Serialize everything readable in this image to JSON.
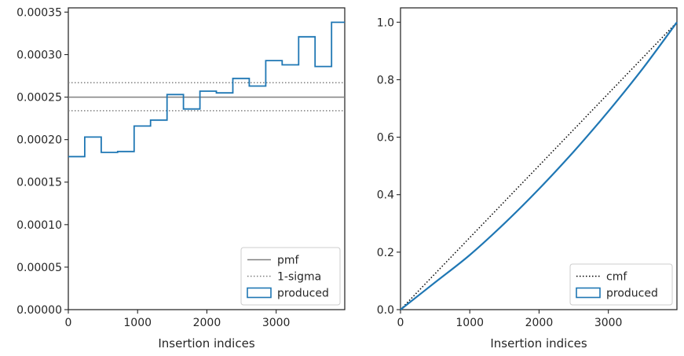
{
  "chart_data": [
    {
      "type": "histogram",
      "xlabel": "Insertion indices",
      "ylabel": "",
      "xlim": [
        0,
        3990
      ],
      "ylim": [
        0,
        0.000355
      ],
      "xticks": [
        0,
        1000,
        2000,
        3000
      ],
      "xtick_labels": [
        "0",
        "1000",
        "2000",
        "3000"
      ],
      "yticks": [
        0,
        5e-05,
        0.0001,
        0.00015,
        0.0002,
        0.00025,
        0.0003,
        0.00035
      ],
      "ytick_labels": [
        "0.00000",
        "0.00005",
        "0.00010",
        "0.00015",
        "0.00020",
        "0.00025",
        "0.00030",
        "0.00035"
      ],
      "bin_edges": [
        0,
        237,
        475,
        712,
        950,
        1187,
        1425,
        1662,
        1900,
        2137,
        2375,
        2612,
        2850,
        3087,
        3325,
        3562,
        3800,
        3990
      ],
      "bin_values": [
        0.00018,
        0.000203,
        0.000185,
        0.000186,
        0.000216,
        0.000223,
        0.000253,
        0.000236,
        0.000257,
        0.000255,
        0.000272,
        0.000263,
        0.000293,
        0.000288,
        0.000321,
        0.000286,
        0.000338
      ],
      "pmf": 0.00025,
      "sigma_lines": [
        0.000267,
        0.000234
      ],
      "legend": {
        "position": "lower-right",
        "entries": [
          {
            "label": "pmf",
            "style": "solid-line",
            "color": "#808080"
          },
          {
            "label": "1-sigma",
            "style": "dotted-line",
            "color": "#808080"
          },
          {
            "label": "produced",
            "style": "box",
            "color": "#1f77b4"
          }
        ]
      }
    },
    {
      "type": "line",
      "xlabel": "Insertion indices",
      "ylabel": "",
      "xlim": [
        0,
        3990
      ],
      "ylim": [
        0,
        1.05
      ],
      "xticks": [
        0,
        1000,
        2000,
        3000
      ],
      "xtick_labels": [
        "0",
        "1000",
        "2000",
        "3000"
      ],
      "yticks": [
        0,
        0.2,
        0.4,
        0.6,
        0.8,
        1.0
      ],
      "ytick_labels": [
        "0.0",
        "0.2",
        "0.4",
        "0.6",
        "0.8",
        "1.0"
      ],
      "cmf": {
        "x": [
          0,
          3990
        ],
        "y": [
          0,
          1.0
        ]
      },
      "produced": {
        "x": [
          0,
          500,
          1000,
          1500,
          2000,
          2500,
          3000,
          3500,
          3990
        ],
        "y": [
          0,
          0.095,
          0.19,
          0.3,
          0.42,
          0.55,
          0.69,
          0.84,
          1.0
        ]
      },
      "legend": {
        "position": "lower-right",
        "entries": [
          {
            "label": "cmf",
            "style": "dotted-line",
            "color": "#000000"
          },
          {
            "label": "produced",
            "style": "box",
            "color": "#1f77b4"
          }
        ]
      }
    }
  ]
}
